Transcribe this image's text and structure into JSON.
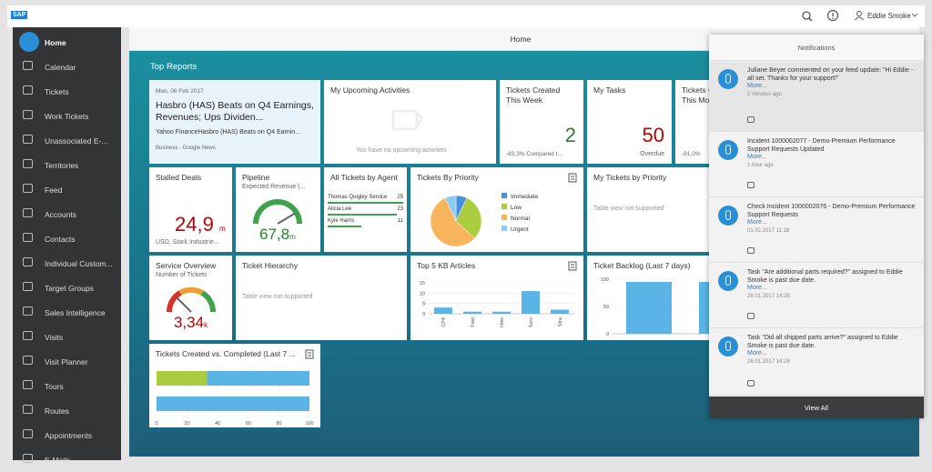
{
  "header": {
    "logo": "SAP",
    "user": "Eddie Smoke",
    "page_title": "Home"
  },
  "sidebar": {
    "items": [
      "Home",
      "Calendar",
      "Tickets",
      "Work Tickets",
      "Unassociated E-...",
      "Territories",
      "Feed",
      "Accounts",
      "Contacts",
      "Individual Custom...",
      "Target Groups",
      "Sales Intelligence",
      "Visits",
      "Visit Planner",
      "Tours",
      "Routes",
      "Appointments",
      "E-Mails"
    ]
  },
  "section_title": "Top Reports",
  "tiles": {
    "news": {
      "date": "Mon, 06 Feb 2017",
      "headline": "Hasbro (HAS) Beats on Q4 Earnings, Revenues; Ups Dividen...",
      "summary": "Yahoo FinanceHasbro (HAS) Beats on Q4 Earnin...",
      "source": "Business - Google News"
    },
    "activities": {
      "title": "My Upcoming Activities",
      "empty": "You have no upcoming activities"
    },
    "tickets_week": {
      "title": "Tickets Created This Week",
      "value": "2",
      "footer": "-83,3% Compared t..."
    },
    "my_tasks": {
      "title": "My Tasks",
      "value": "50",
      "footer": "Overdue"
    },
    "tickets_month": {
      "title": "Tickets Created This Month",
      "footer": "-91,0%"
    },
    "stalled": {
      "title": "Stalled Deals",
      "value": "24,9",
      "unit": "m",
      "footer": "USD, Stark Industrie..."
    },
    "pipeline": {
      "title": "Pipeline",
      "subtitle": "Expected Revenue (...",
      "value": "67,8",
      "unit": "m"
    },
    "agents": {
      "title": "All Tickets by Agent",
      "names": [
        "Thomas Quigley Service",
        "Alicia Lee",
        "Kyle Harris"
      ],
      "values": [
        25,
        23,
        11
      ],
      "color": "#3fa34d"
    },
    "priority": {
      "title": "Tickets By Priority",
      "type": "pie",
      "categories": [
        "Immediate",
        "Low",
        "Normal",
        "Urgent"
      ],
      "values": [
        7,
        30,
        56,
        7
      ],
      "colors": [
        "#4a8fd9",
        "#a9cd3e",
        "#f8b55c",
        "#8ccbf2"
      ]
    },
    "my_tickets_priority": {
      "title": "My Tickets by Priority",
      "empty": "Table view not supported"
    },
    "service": {
      "title": "Service Overview",
      "subtitle": "Number of Tickets",
      "value": "3,34",
      "unit": "k"
    },
    "hierarchy": {
      "title": "Ticket Hierarchy",
      "empty": "Table view not supported"
    },
    "kb": {
      "title": "Top 5 KB Articles",
      "type": "bar",
      "categories": [
        "CP4",
        "Fast",
        "How",
        "Serv",
        "Stra"
      ],
      "values": [
        3,
        1,
        1,
        11,
        2
      ],
      "ylim": [
        0,
        15
      ],
      "yticks": [
        0,
        5,
        10,
        15
      ],
      "color": "#5ab4e5"
    },
    "backlog": {
      "title": "Ticket Backlog (Last 7 days)",
      "type": "bar",
      "values": [
        95,
        95
      ],
      "ylim": [
        0,
        100
      ],
      "yticks": [
        0,
        50,
        100
      ],
      "color": "#5ab4e5"
    },
    "created_completed": {
      "title": "Tickets Created vs. Completed (Last 7 ...",
      "type": "stacked_barh",
      "series": [
        {
          "color": "#a9cd3e",
          "values": [
            33,
            0
          ]
        },
        {
          "color": "#5ab4e5",
          "values": [
            67,
            100
          ]
        }
      ],
      "xlim": [
        0,
        100
      ],
      "xticks": [
        0,
        20,
        40,
        60,
        80,
        100
      ]
    }
  },
  "notifications": {
    "title": "Notifications",
    "items": [
      {
        "text": "Juliane Beyer commented on your feed update: \"Hi Eddie - all set. Thanks for your support!\"",
        "more": "More...",
        "time": "2 minutes ago"
      },
      {
        "text": "Incident 1000002077 - Demo-Premium Performance Support Requests Updated",
        "more": "More...",
        "time": "1 hour ago"
      },
      {
        "text": "Check Incident 1000002076 - Demo-Premium Performance Support Requests",
        "more": "More...",
        "time": "01.02.2017 11:18"
      },
      {
        "text": "Task \"Are additional parts required?\" assigned to Eddie Smoke is past due date.",
        "more": "More...",
        "time": "28.01.2017 14:28"
      },
      {
        "text": "Task \"Did all shipped parts arrive?\" assigned to Eddie Smoke is past due date.",
        "more": "More...",
        "time": "28.01.2017 14:28"
      }
    ],
    "footer": "View All"
  }
}
